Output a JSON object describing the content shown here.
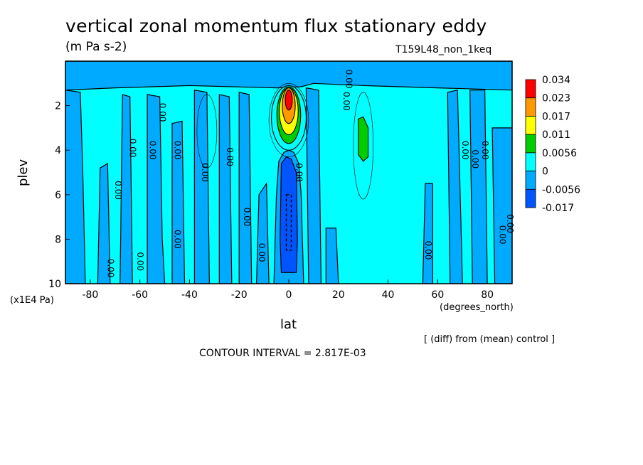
{
  "title": "vertical zonal momentum flux stationary eddy",
  "units": "(m Pa s-2)",
  "run_label": "T159L48_non_1keq",
  "diff_note": "[ (diff) from (mean) control ]",
  "contour_interval": "CONTOUR INTERVAL = 2.817E-03",
  "chart_data": {
    "type": "heatmap",
    "title": "vertical zonal momentum flux stationary eddy",
    "xlabel": "lat",
    "xunit": "(degrees_north)",
    "ylabel": "plev",
    "yunit": "(x1E4 Pa)",
    "xlim": [
      -90,
      90
    ],
    "ylim": [
      10,
      0
    ],
    "x_ticks": [
      -80,
      -60,
      -40,
      -20,
      0,
      20,
      40,
      60,
      80
    ],
    "x_tick_labels": [
      "-80",
      "-60",
      "-40",
      "-20",
      "0",
      "20",
      "40",
      "60",
      "80"
    ],
    "y_ticks": [
      2,
      4,
      6,
      8,
      10
    ],
    "y_tick_labels": [
      "2",
      "4",
      "6",
      "8",
      "10"
    ],
    "colorbar": {
      "labels": [
        "0.034",
        "0.023",
        "0.017",
        "0.011",
        "0.0056",
        "0",
        "-0.0056",
        "-0.017"
      ],
      "colors": [
        "#ff0000",
        "#ff9900",
        "#ffff00",
        "#00cc00",
        "#00ffff",
        "#00aaff",
        "#0055ff",
        "#0000cc"
      ]
    },
    "background_colors": {
      "positive_small": "#00ffff",
      "negative_small": "#00aaff",
      "negative_mid": "#0055ff"
    },
    "features": [
      {
        "name": "equatorial positive maximum",
        "lat": 0,
        "plev": [
          1.2,
          3.8
        ],
        "max": 0.034
      },
      {
        "name": "equatorial negative minimum",
        "lat": 0,
        "plev": [
          4.3,
          8.5
        ],
        "min": -0.017
      },
      {
        "name": "subtropical positive core",
        "lat": 30,
        "plev": [
          2.6,
          4.5
        ],
        "max": 0.0056
      }
    ],
    "zero_contour_labels": [
      {
        "text": "0.00",
        "lat": -70,
        "plev": 5.8
      },
      {
        "text": "0.00",
        "lat": -73,
        "plev": 9.3
      },
      {
        "text": "0.00",
        "lat": -64,
        "plev": 3.9
      },
      {
        "text": "0.00",
        "lat": -61,
        "plev": 9.0
      },
      {
        "text": "0.00",
        "lat": -56,
        "plev": 4.0
      },
      {
        "text": "0.00",
        "lat": -52,
        "plev": 2.3
      },
      {
        "text": "0.00",
        "lat": -46,
        "plev": 4.0
      },
      {
        "text": "0.00",
        "lat": -46,
        "plev": 8.0
      },
      {
        "text": "0.00",
        "lat": -35,
        "plev": 5.0
      },
      {
        "text": "0.00",
        "lat": -25,
        "plev": 4.3
      },
      {
        "text": "0.00",
        "lat": -18,
        "plev": 7.0
      },
      {
        "text": "0.00",
        "lat": -12,
        "plev": 8.6
      },
      {
        "text": "0.00",
        "lat": 3,
        "plev": 5.0
      },
      {
        "text": "0.00",
        "lat": 22,
        "plev": 1.8
      },
      {
        "text": "0.00",
        "lat": 23,
        "plev": 0.8
      },
      {
        "text": "0.00",
        "lat": 55,
        "plev": 8.5
      },
      {
        "text": "0.00",
        "lat": 70,
        "plev": 4.0
      },
      {
        "text": "0.00",
        "lat": 74,
        "plev": 4.4
      },
      {
        "text": "0.00",
        "lat": 78,
        "plev": 4.0
      },
      {
        "text": "0.00",
        "lat": 85,
        "plev": 7.8
      },
      {
        "text": "0.00",
        "lat": 88,
        "plev": 7.3
      }
    ]
  }
}
